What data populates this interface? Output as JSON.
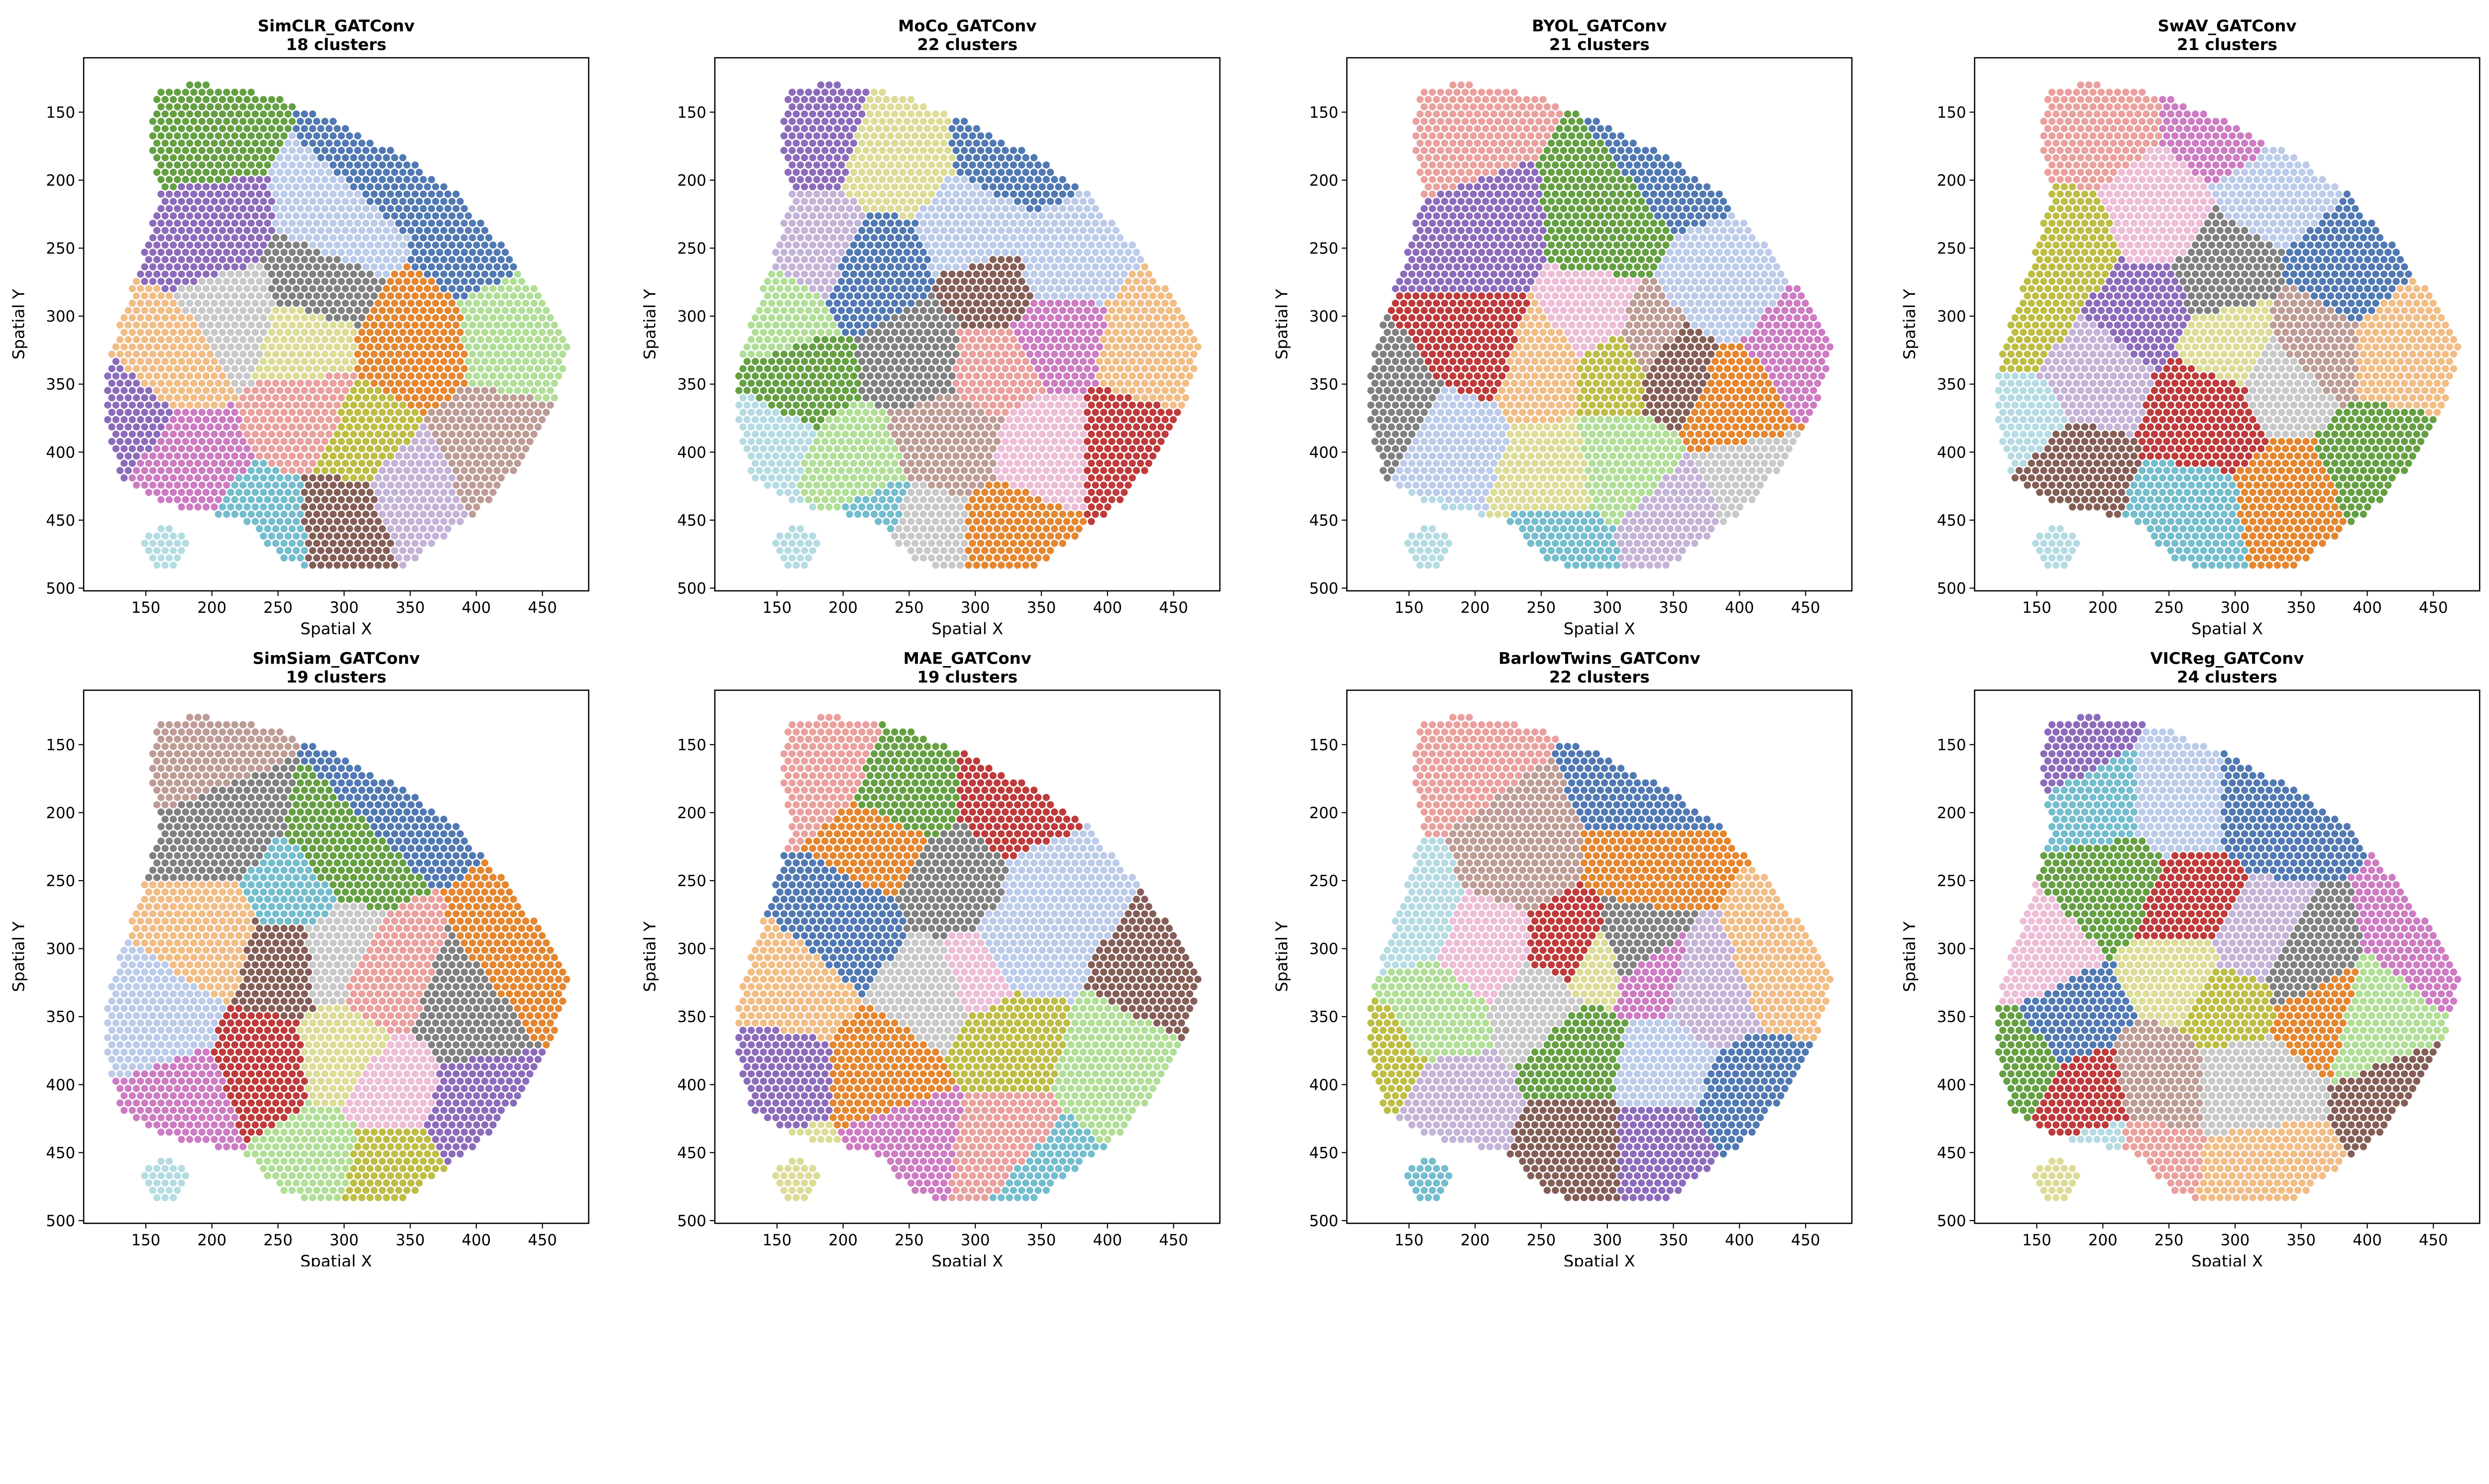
{
  "colors": {
    "blue": "#5079b3",
    "lightblue": "#bccbe9",
    "orange": "#e5862f",
    "lightorange": "#f1bd85",
    "green": "#64a042",
    "lightgreen": "#b1de96",
    "red": "#bf3a3a",
    "pink": "#eaa09e",
    "purple": "#8c6bbb",
    "lavender": "#c4b3d7",
    "brown": "#845e56",
    "tan": "#bd9c95",
    "magenta": "#cd7bc2",
    "lightpink": "#edbdd7",
    "gray": "#808080",
    "lightgray": "#c8c8c8",
    "olive": "#bdbd44",
    "khaki": "#dcdc97",
    "cyan": "#73bdcd",
    "palecyan": "#b5dbe3"
  },
  "chart_data": [
    {
      "type": "scatter",
      "title": "SimCLR_GATConv",
      "subtitle": "18 clusters",
      "xlabel": "Spatial X",
      "ylabel": "Spatial Y",
      "xlim": [
        103,
        485
      ],
      "ylim": [
        502,
        110
      ],
      "y_inverted": true,
      "xticks": [
        150,
        200,
        250,
        300,
        350,
        400,
        450
      ],
      "yticks": [
        150,
        200,
        250,
        300,
        350,
        400,
        450,
        500
      ],
      "clusters": [
        [
          "green",
          185,
          165
        ],
        [
          "blue",
          330,
          195
        ],
        [
          "blue",
          400,
          240
        ],
        [
          "lightblue",
          300,
          230
        ],
        [
          "purple",
          195,
          240
        ],
        [
          "purple",
          132,
          375
        ],
        [
          "lightgray",
          215,
          300
        ],
        [
          "gray",
          280,
          280
        ],
        [
          "orange",
          350,
          320
        ],
        [
          "khaki",
          270,
          315
        ],
        [
          "lightorange",
          170,
          330
        ],
        [
          "pink",
          275,
          375
        ],
        [
          "olive",
          310,
          390
        ],
        [
          "magenta",
          180,
          410
        ],
        [
          "cyan",
          240,
          455
        ],
        [
          "brown",
          300,
          450
        ],
        [
          "lavender",
          350,
          430
        ],
        [
          "tan",
          410,
          400
        ],
        [
          "lightgreen",
          430,
          310
        ],
        [
          "palecyan",
          165,
          472
        ]
      ]
    },
    {
      "type": "scatter",
      "title": "MoCo_GATConv",
      "subtitle": "22 clusters",
      "xlabel": "Spatial X",
      "ylabel": "Spatial Y",
      "xlim": [
        103,
        485
      ],
      "ylim": [
        502,
        110
      ],
      "y_inverted": true,
      "xticks": [
        150,
        200,
        250,
        300,
        350,
        400,
        450
      ],
      "yticks": [
        150,
        200,
        250,
        300,
        350,
        400,
        450,
        500
      ],
      "clusters": [
        [
          "purple",
          180,
          170
        ],
        [
          "khaki",
          235,
          185
        ],
        [
          "blue",
          225,
          265
        ],
        [
          "blue",
          330,
          180
        ],
        [
          "lightblue",
          300,
          240
        ],
        [
          "lavender",
          180,
          245
        ],
        [
          "lightgreen",
          148,
          305
        ],
        [
          "green",
          160,
          345
        ],
        [
          "palecyan",
          138,
          392
        ],
        [
          "lightgreen",
          205,
          415
        ],
        [
          "cyan",
          222,
          452
        ],
        [
          "lightgray",
          258,
          462
        ],
        [
          "gray",
          262,
          330
        ],
        [
          "tan",
          280,
          390
        ],
        [
          "pink",
          310,
          335
        ],
        [
          "magenta",
          360,
          310
        ],
        [
          "lightblue",
          365,
          265
        ],
        [
          "brown",
          312,
          280
        ],
        [
          "orange",
          330,
          462
        ],
        [
          "lightpink",
          355,
          400
        ],
        [
          "red",
          410,
          400
        ],
        [
          "lightorange",
          432,
          320
        ],
        [
          "palecyan",
          160,
          472
        ]
      ]
    },
    {
      "type": "scatter",
      "title": "BYOL_GATConv",
      "subtitle": "21 clusters",
      "xlabel": "Spatial X",
      "ylabel": "Spatial Y",
      "xlim": [
        103,
        485
      ],
      "ylim": [
        502,
        110
      ],
      "y_inverted": true,
      "xticks": [
        150,
        200,
        250,
        300,
        350,
        400,
        450
      ],
      "yticks": [
        150,
        200,
        250,
        300,
        350,
        400,
        450,
        500
      ],
      "clusters": [
        [
          "pink",
          180,
          165
        ],
        [
          "blue",
          350,
          190
        ],
        [
          "green",
          300,
          230
        ],
        [
          "purple",
          205,
          240
        ],
        [
          "red",
          205,
          320
        ],
        [
          "gray",
          138,
          370
        ],
        [
          "lightblue",
          180,
          395
        ],
        [
          "lightorange",
          250,
          335
        ],
        [
          "lightpink",
          290,
          305
        ],
        [
          "olive",
          305,
          335
        ],
        [
          "tan",
          330,
          320
        ],
        [
          "brown",
          348,
          335
        ],
        [
          "lightblue",
          385,
          280
        ],
        [
          "orange",
          400,
          360
        ],
        [
          "magenta",
          442,
          330
        ],
        [
          "lightgreen",
          310,
          412
        ],
        [
          "lavender",
          350,
          452
        ],
        [
          "cyan",
          262,
          465
        ],
        [
          "lightgray",
          412,
          425
        ],
        [
          "khaki",
          258,
          420
        ],
        [
          "palecyan",
          160,
          472
        ]
      ]
    },
    {
      "type": "scatter",
      "title": "SwAV_GATConv",
      "subtitle": "21 clusters",
      "xlabel": "Spatial X",
      "ylabel": "Spatial Y",
      "xlim": [
        103,
        485
      ],
      "ylim": [
        502,
        110
      ],
      "y_inverted": true,
      "xticks": [
        150,
        200,
        250,
        300,
        350,
        400,
        450
      ],
      "yticks": [
        150,
        200,
        250,
        300,
        350,
        400,
        450,
        500
      ],
      "clusters": [
        [
          "pink",
          185,
          160
        ],
        [
          "magenta",
          300,
          160
        ],
        [
          "lightblue",
          330,
          205
        ],
        [
          "blue",
          385,
          265
        ],
        [
          "olive",
          178,
          250
        ],
        [
          "lightpink",
          238,
          230
        ],
        [
          "purple",
          228,
          292
        ],
        [
          "gray",
          290,
          268
        ],
        [
          "khaki",
          300,
          322
        ],
        [
          "tan",
          352,
          322
        ],
        [
          "lightgray",
          335,
          340
        ],
        [
          "lavender",
          190,
          342
        ],
        [
          "olive",
          140,
          300
        ],
        [
          "palecyan",
          138,
          380
        ],
        [
          "brown",
          170,
          412
        ],
        [
          "red",
          280,
          370
        ],
        [
          "cyan",
          268,
          452
        ],
        [
          "orange",
          340,
          442
        ],
        [
          "green",
          410,
          412
        ],
        [
          "lightorange",
          432,
          320
        ],
        [
          "palecyan",
          160,
          472
        ]
      ]
    },
    {
      "type": "scatter",
      "title": "SimSiam_GATConv",
      "subtitle": "19 clusters",
      "xlabel": "Spatial X",
      "ylabel": "Spatial Y",
      "xlim": [
        103,
        485
      ],
      "ylim": [
        502,
        110
      ],
      "y_inverted": true,
      "xticks": [
        150,
        200,
        250,
        300,
        350,
        400,
        450
      ],
      "yticks": [
        150,
        200,
        250,
        300,
        350,
        400,
        450,
        500
      ],
      "clusters": [
        [
          "tan",
          185,
          160
        ],
        [
          "blue",
          340,
          190
        ],
        [
          "gray",
          205,
          212
        ],
        [
          "green",
          300,
          232
        ],
        [
          "lightorange",
          200,
          290
        ],
        [
          "lightblue",
          158,
          352
        ],
        [
          "brown",
          255,
          305
        ],
        [
          "cyan",
          262,
          262
        ],
        [
          "lightgray",
          292,
          302
        ],
        [
          "pink",
          332,
          322
        ],
        [
          "khaki",
          300,
          382
        ],
        [
          "lightpink",
          332,
          402
        ],
        [
          "red",
          240,
          392
        ],
        [
          "magenta",
          180,
          412
        ],
        [
          "lightgreen",
          280,
          452
        ],
        [
          "olive",
          332,
          462
        ],
        [
          "purple",
          402,
          420
        ],
        [
          "gray",
          392,
          342
        ],
        [
          "orange",
          432,
          310
        ],
        [
          "palecyan",
          165,
          472
        ]
      ]
    },
    {
      "type": "scatter",
      "title": "MAE_GATConv",
      "subtitle": "19 clusters",
      "xlabel": "Spatial X",
      "ylabel": "Spatial Y",
      "xlim": [
        103,
        485
      ],
      "ylim": [
        502,
        110
      ],
      "y_inverted": true,
      "xticks": [
        150,
        200,
        250,
        300,
        350,
        400,
        450
      ],
      "yticks": [
        150,
        200,
        250,
        300,
        350,
        400,
        450,
        500
      ],
      "clusters": [
        [
          "pink",
          180,
          165
        ],
        [
          "green",
          245,
          190
        ],
        [
          "red",
          330,
          190
        ],
        [
          "orange",
          230,
          222
        ],
        [
          "blue",
          200,
          282
        ],
        [
          "gray",
          282,
          252
        ],
        [
          "lightorange",
          160,
          330
        ],
        [
          "purple",
          150,
          392
        ],
        [
          "orange",
          232,
          392
        ],
        [
          "magenta",
          250,
          442
        ],
        [
          "pink",
          320,
          452
        ],
        [
          "lightgray",
          272,
          332
        ],
        [
          "lightpink",
          300,
          322
        ],
        [
          "olive",
          322,
          362
        ],
        [
          "lightblue",
          332,
          302
        ],
        [
          "lightblue",
          360,
          262
        ],
        [
          "lightgreen",
          410,
          382
        ],
        [
          "brown",
          440,
          320
        ],
        [
          "cyan",
          342,
          472
        ],
        [
          "khaki",
          160,
          472
        ]
      ]
    },
    {
      "type": "scatter",
      "title": "BarlowTwins_GATConv",
      "subtitle": "22 clusters",
      "xlabel": "Spatial X",
      "ylabel": "Spatial Y",
      "xlim": [
        103,
        485
      ],
      "ylim": [
        502,
        110
      ],
      "y_inverted": true,
      "xticks": [
        150,
        200,
        250,
        300,
        350,
        400,
        450
      ],
      "yticks": [
        150,
        200,
        250,
        300,
        350,
        400,
        450,
        500
      ],
      "clusters": [
        [
          "pink",
          180,
          160
        ],
        [
          "blue",
          330,
          190
        ],
        [
          "orange",
          330,
          232
        ],
        [
          "tan",
          232,
          232
        ],
        [
          "lightpink",
          210,
          300
        ],
        [
          "palecyan",
          150,
          272
        ],
        [
          "red",
          270,
          300
        ],
        [
          "gray",
          318,
          302
        ],
        [
          "magenta",
          332,
          322
        ],
        [
          "lightgray",
          250,
          340
        ],
        [
          "lavender",
          372,
          332
        ],
        [
          "lightorange",
          432,
          310
        ],
        [
          "blue",
          410,
          412
        ],
        [
          "lightgreen",
          170,
          350
        ],
        [
          "olive",
          130,
          380
        ],
        [
          "lavender",
          180,
          412
        ],
        [
          "green",
          280,
          372
        ],
        [
          "khaki",
          292,
          312
        ],
        [
          "lightblue",
          340,
          382
        ],
        [
          "purple",
          340,
          452
        ],
        [
          "brown",
          280,
          452
        ],
        [
          "cyan",
          165,
          472
        ]
      ]
    },
    {
      "type": "scatter",
      "title": "VICReg_GATConv",
      "subtitle": "24 clusters",
      "xlabel": "Spatial X",
      "ylabel": "Spatial Y",
      "xlim": [
        103,
        485
      ],
      "ylim": [
        502,
        110
      ],
      "y_inverted": true,
      "xticks": [
        150,
        200,
        250,
        300,
        350,
        400,
        450
      ],
      "yticks": [
        150,
        200,
        250,
        300,
        350,
        400,
        450,
        500
      ],
      "clusters": [
        [
          "purple",
          180,
          150
        ],
        [
          "cyan",
          200,
          190
        ],
        [
          "lightblue",
          250,
          190
        ],
        [
          "blue",
          330,
          190
        ],
        [
          "green",
          210,
          252
        ],
        [
          "lightpink",
          150,
          310
        ],
        [
          "blue",
          170,
          350
        ],
        [
          "red",
          260,
          272
        ],
        [
          "khaki",
          262,
          312
        ],
        [
          "lavender",
          312,
          302
        ],
        [
          "orange",
          360,
          340
        ],
        [
          "lightgreen",
          410,
          352
        ],
        [
          "magenta",
          450,
          300
        ],
        [
          "brown",
          432,
          410
        ],
        [
          "green",
          135,
          380
        ],
        [
          "red",
          190,
          412
        ],
        [
          "tan",
          240,
          402
        ],
        [
          "lightgray",
          312,
          402
        ],
        [
          "pink",
          230,
          452
        ],
        [
          "lightorange",
          320,
          462
        ],
        [
          "palecyan",
          200,
          452
        ],
        [
          "khaki",
          165,
          472
        ],
        [
          "gray",
          350,
          322
        ],
        [
          "olive",
          300,
          335
        ]
      ]
    }
  ]
}
